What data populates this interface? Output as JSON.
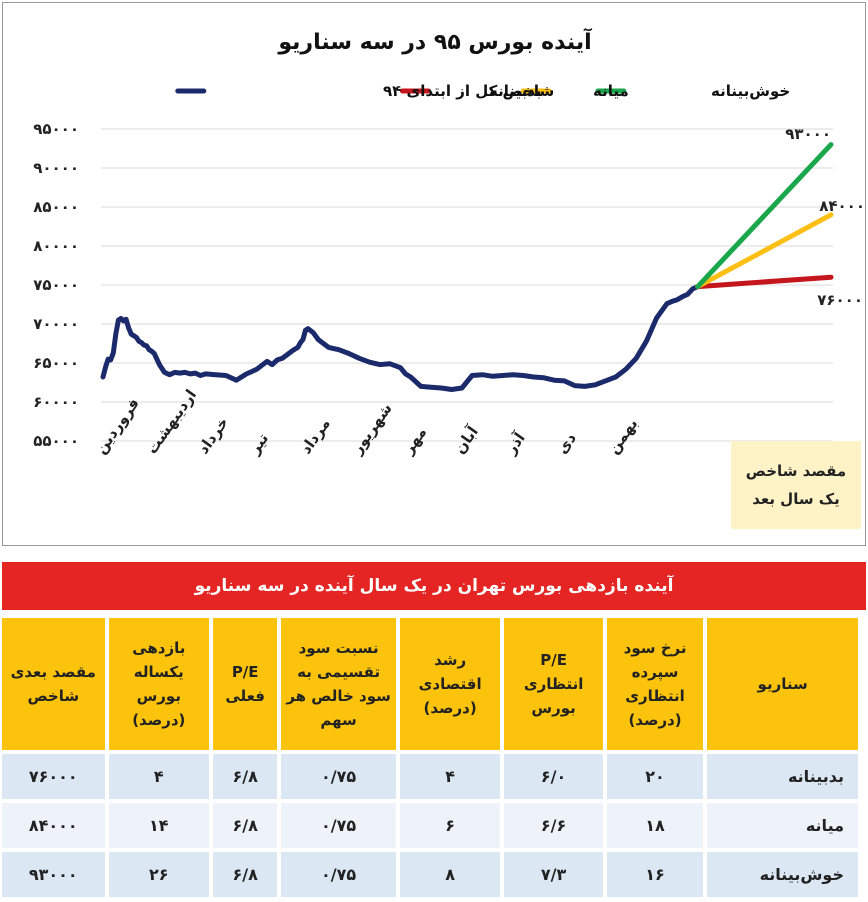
{
  "chart_data": {
    "type": "line",
    "title": "آینده بورس ۹۵ در سه سناریو",
    "legend": {
      "placement": "top",
      "entries": [
        {
          "name": "خوش‌بینانه",
          "color": "#1aa64a"
        },
        {
          "name": "میانه",
          "color": "#fdbf13"
        },
        {
          "name": "بدبینانه",
          "color": "#c4161c"
        },
        {
          "name": "شاخص کل از ابتدای ۹۴",
          "color": "#1b2a6b"
        }
      ]
    },
    "y_ticks": [
      "۵۵۰۰۰",
      "۶۰۰۰۰",
      "۶۵۰۰۰",
      "۷۰۰۰۰",
      "۷۵۰۰۰",
      "۸۰۰۰۰",
      "۸۵۰۰۰",
      "۹۰۰۰۰",
      "۹۵۰۰۰"
    ],
    "ylim": [
      55000,
      95000
    ],
    "grid": true,
    "x_ticks": [
      "فروردین",
      "اردیبهشت",
      "خرداد",
      "تیر",
      "مرداد",
      "شهریور",
      "مهر",
      "آبان",
      "آذر",
      "دی",
      "بهمن"
    ],
    "series": [
      {
        "name": "شاخص کل از ابتدای ۹۴",
        "color": "#1b2a6b",
        "x": [
          0,
          0.05,
          0.1,
          0.15,
          0.2,
          0.25,
          0.3,
          0.35,
          0.4,
          0.45,
          0.5,
          0.55,
          0.6,
          0.65,
          0.7,
          0.75,
          0.8,
          0.85,
          0.9,
          0.95,
          1.0,
          1.1,
          1.2,
          1.3,
          1.4,
          1.5,
          1.6,
          1.7,
          1.8,
          1.9,
          2.0,
          2.2,
          2.4,
          2.6,
          2.8,
          2.9,
          3.0,
          3.1,
          3.2,
          3.3,
          3.4,
          3.5,
          3.6,
          3.7,
          3.8,
          3.85,
          3.9,
          3.95,
          4.0,
          4.1,
          4.2,
          4.4,
          4.6,
          4.8,
          5.0,
          5.2,
          5.4,
          5.6,
          5.8,
          5.9,
          6.0,
          6.2,
          6.4,
          6.6,
          6.8,
          7.0,
          7.2,
          7.4,
          7.6,
          7.8,
          8.0,
          8.2,
          8.4,
          8.6,
          8.8,
          9.0,
          9.2,
          9.4,
          9.6,
          9.8,
          10.0,
          10.2,
          10.4,
          10.6,
          10.8,
          11.0,
          11.1,
          11.2,
          11.3,
          11.4,
          11.5,
          11.6
        ],
        "values": [
          63200,
          64500,
          65500,
          65400,
          66300,
          68700,
          70500,
          70700,
          70400,
          70600,
          69500,
          68700,
          68500,
          68300,
          67800,
          67600,
          67300,
          67200,
          66700,
          66500,
          66200,
          64800,
          63800,
          63500,
          63800,
          63700,
          63800,
          63600,
          63700,
          63400,
          63600,
          63500,
          63400,
          62800,
          63600,
          63900,
          64200,
          64700,
          65200,
          64800,
          65400,
          65600,
          66100,
          66600,
          67000,
          67600,
          68000,
          69200,
          69400,
          68900,
          68000,
          67000,
          66700,
          66200,
          65600,
          65100,
          64800,
          64900,
          64400,
          63600,
          63200,
          62000,
          61900,
          61800,
          61600,
          61800,
          63400,
          63500,
          63300,
          63400,
          63500,
          63400,
          63200,
          63100,
          62800,
          62700,
          62100,
          62000,
          62200,
          62700,
          63200,
          64200,
          65600,
          67800,
          70800,
          72600,
          72900,
          73100,
          73500,
          73800,
          74500,
          74800
        ]
      },
      {
        "name": "بدبینانه",
        "color": "#c4161c",
        "x": [
          11.6,
          14.2
        ],
        "values": [
          74800,
          76000
        ]
      },
      {
        "name": "میانه",
        "color": "#fdbf13",
        "x": [
          11.6,
          14.2
        ],
        "values": [
          74800,
          84000
        ]
      },
      {
        "name": "خوش‌بینانه",
        "color": "#1aa64a",
        "x": [
          11.6,
          14.2
        ],
        "values": [
          74800,
          93000
        ]
      }
    ],
    "annotations": [
      {
        "text": "۹۳۰۰۰",
        "series": "خوش‌بینانه"
      },
      {
        "text": "۸۴۰۰۰",
        "series": "میانه"
      },
      {
        "text": "۷۶۰۰۰",
        "series": "بدبینانه"
      }
    ],
    "target_box": {
      "line1": "مقصد شاخص",
      "line2": "یک سال بعد"
    }
  },
  "table": {
    "title": "آینده بازدهی بورس تهران در یک سال آینده در سه سناریو",
    "headers": [
      "سناریو",
      "نرخ سود سپرده انتظاری (درصد)",
      "P/E انتظاری بورس",
      "رشد اقتصادی (درصد)",
      "نسبت سود تقسیمی به سود خالص هر سهم",
      "P/E فعلی",
      "بازدهی یکساله بورس (درصد)",
      "مقصد بعدی شاخص"
    ],
    "rows": [
      [
        "بدبینانه",
        "۲۰",
        "۶/۰",
        "۴",
        "۰/۷۵",
        "۶/۸",
        "۴",
        "۷۶۰۰۰"
      ],
      [
        "میانه",
        "۱۸",
        "۶/۶",
        "۶",
        "۰/۷۵",
        "۶/۸",
        "۱۴",
        "۸۴۰۰۰"
      ],
      [
        "خوش‌بینانه",
        "۱۶",
        "۷/۳",
        "۸",
        "۰/۷۵",
        "۶/۸",
        "۲۶",
        "۹۳۰۰۰"
      ]
    ]
  },
  "colors": {
    "table_header": "#fcc30d",
    "table_title_bg": "#e52523",
    "row_odd": "#dbe7f3",
    "row_even": "#eef3f9",
    "target_box_bg": "#fdf3c7"
  }
}
